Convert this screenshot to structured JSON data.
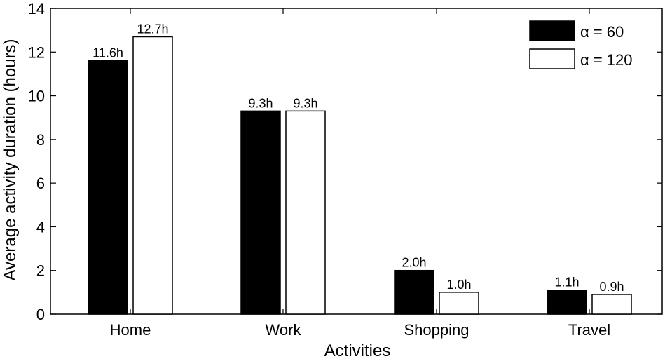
{
  "chart_data": {
    "type": "bar",
    "xlabel": "Activities",
    "ylabel": "Average activity duration (hours)",
    "ylim": [
      0,
      14
    ],
    "yticks": [
      "0",
      "2",
      "4",
      "6",
      "8",
      "10",
      "12",
      "14"
    ],
    "grid": false,
    "legend_placement": "top-right",
    "categories": [
      "Home",
      "Work",
      "Shopping",
      "Travel"
    ],
    "series": [
      {
        "name": "α = 60",
        "color": "#000000",
        "values": [
          11.6,
          9.3,
          2.0,
          1.1
        ],
        "labels": [
          "11.6h",
          "9.3h",
          "2.0h",
          "1.1h"
        ]
      },
      {
        "name": "α = 120",
        "color": "#ffffff",
        "values": [
          12.7,
          9.3,
          1.0,
          0.9
        ],
        "labels": [
          "12.7h",
          "9.3h",
          "1.0h",
          "0.9h"
        ]
      }
    ]
  }
}
